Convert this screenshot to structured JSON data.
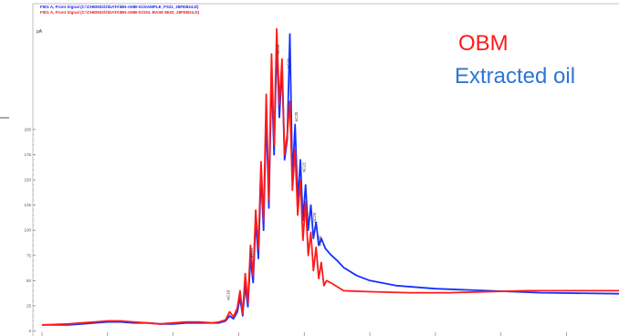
{
  "header_lines": [
    {
      "text": "FID1 A, Front Signal (C:\\CHEM32\\2\\DATA\\BN-AMB-01\\SAMPLE_FS21_28FEB24.D)",
      "color": "#1a1aff"
    },
    {
      "text": "FID1 A, Front Signal (C:\\CHEM32\\2\\DATA\\BN-AMB-01\\OIL BASE MUD_28FEB24.D)",
      "color": "#e0202a"
    }
  ],
  "chart_data": {
    "type": "line",
    "ylabel": "pA",
    "ylim": [
      -5,
      325
    ],
    "xlim": [
      0,
      44
    ],
    "y_ticks": [
      0,
      25,
      50,
      75,
      100,
      125,
      150,
      175,
      200
    ],
    "y_tick_labels": [
      "0",
      "25",
      "50",
      "75",
      "100",
      "125",
      "150",
      "175",
      "200"
    ],
    "x_ticks": [
      0,
      5,
      10,
      15,
      20,
      25,
      30,
      35,
      40
    ],
    "grid": false,
    "legend_position": "top-right",
    "peak_labels": [
      {
        "x": 14.3,
        "y": 28,
        "text": "nC10"
      },
      {
        "x": 16.1,
        "y": 70,
        "text": "nC13"
      },
      {
        "x": 18.1,
        "y": 272,
        "text": "nC16"
      },
      {
        "x": 18.9,
        "y": 258,
        "text": "nC18"
      },
      {
        "x": 19.5,
        "y": 205,
        "text": "nC20"
      },
      {
        "x": 20.1,
        "y": 155,
        "text": "nC22"
      },
      {
        "x": 20.9,
        "y": 105,
        "text": "nC26"
      },
      {
        "x": 21.3,
        "y": 82,
        "text": "nC28"
      }
    ],
    "series": [
      {
        "name": "OBM",
        "color": "#ff1a1a",
        "x": [
          0,
          2,
          3,
          4,
          5,
          6,
          7,
          8,
          9,
          10,
          11,
          12,
          13,
          13.5,
          14,
          14.3,
          14.6,
          14.9,
          15.1,
          15.3,
          15.5,
          15.7,
          15.9,
          16.1,
          16.3,
          16.5,
          16.7,
          16.9,
          17.1,
          17.3,
          17.5,
          17.7,
          17.9,
          18.1,
          18.3,
          18.5,
          18.7,
          18.9,
          19.1,
          19.3,
          19.5,
          19.7,
          19.9,
          20.1,
          20.3,
          20.5,
          20.7,
          20.9,
          21.1,
          21.3,
          21.5,
          21.7,
          22,
          23,
          25,
          28,
          31,
          34,
          37,
          40,
          44
        ],
        "values": [
          6,
          7,
          8,
          9,
          10,
          10,
          9,
          8,
          7,
          8,
          9,
          9,
          8,
          9,
          11,
          19,
          14,
          23,
          40,
          17,
          57,
          28,
          85,
          55,
          120,
          82,
          168,
          110,
          235,
          130,
          275,
          185,
          300,
          225,
          270,
          175,
          195,
          228,
          140,
          180,
          115,
          150,
          90,
          128,
          75,
          98,
          60,
          83,
          52,
          68,
          45,
          50,
          48,
          40,
          39,
          38,
          38,
          39,
          40,
          40,
          40
        ]
      },
      {
        "name": "Extracted oil",
        "color": "#1432ff",
        "x": [
          0,
          2,
          3,
          4,
          5,
          6,
          7,
          8,
          9,
          10,
          11,
          12,
          13,
          13.5,
          14,
          14.3,
          14.6,
          14.9,
          15.1,
          15.3,
          15.5,
          15.7,
          15.9,
          16.1,
          16.3,
          16.5,
          16.7,
          16.9,
          17.1,
          17.3,
          17.5,
          17.7,
          17.9,
          18.1,
          18.3,
          18.5,
          18.7,
          18.9,
          19.1,
          19.3,
          19.5,
          19.7,
          19.9,
          20.1,
          20.3,
          20.5,
          20.7,
          20.9,
          21.1,
          21.3,
          21.6,
          22,
          22.5,
          23,
          24,
          25,
          27,
          30,
          34,
          38,
          44
        ],
        "values": [
          6,
          6,
          7,
          8,
          9,
          9,
          8,
          8,
          7,
          7,
          8,
          8,
          8,
          8,
          10,
          15,
          12,
          19,
          33,
          15,
          45,
          24,
          72,
          48,
          110,
          72,
          155,
          100,
          215,
          122,
          255,
          175,
          285,
          212,
          262,
          170,
          190,
          295,
          150,
          205,
          130,
          170,
          110,
          145,
          100,
          125,
          92,
          108,
          85,
          92,
          82,
          76,
          70,
          63,
          55,
          50,
          45,
          42,
          40,
          38,
          37
        ]
      }
    ]
  }
}
